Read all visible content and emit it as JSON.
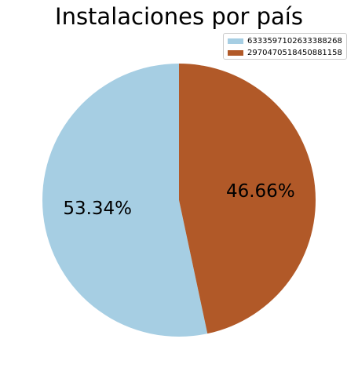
{
  "chart_data": {
    "type": "pie",
    "title": "Instalaciones por país",
    "labels": [
      "6333597102633388268",
      "2970470518450881158"
    ],
    "values": [
      53.34,
      46.66
    ],
    "value_labels": [
      "53.34%",
      "46.66%"
    ],
    "colors": [
      "#a6cee3",
      "#b15928"
    ],
    "start_angle_deg": 90,
    "direction": "counterclockwise",
    "legend": {
      "position": "top-right"
    }
  }
}
